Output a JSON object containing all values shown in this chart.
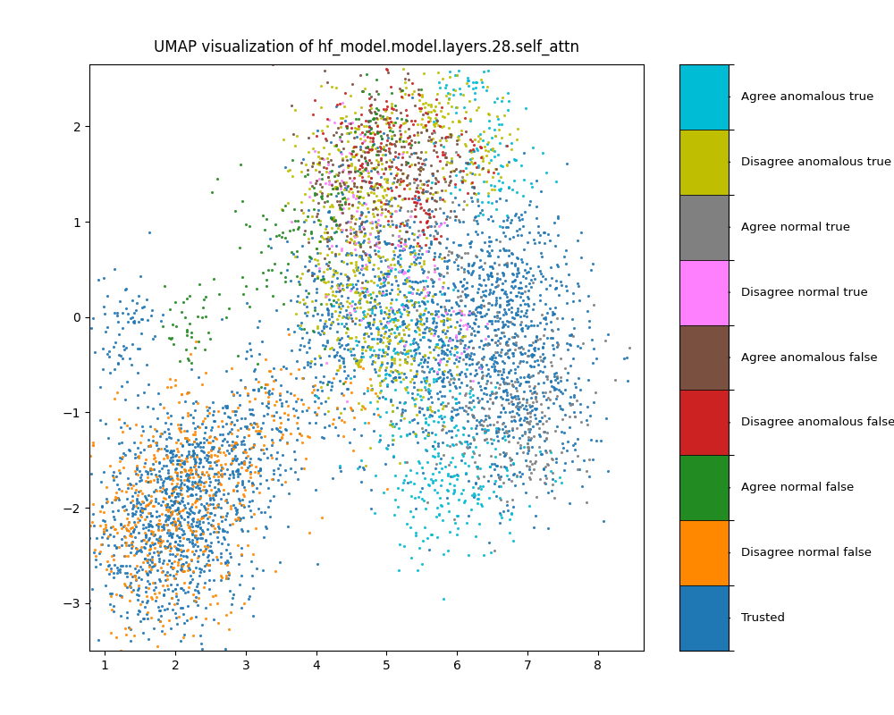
{
  "title": "UMAP visualization of hf_model.model.layers.28.self_attn",
  "xlim": [
    0.78,
    8.65
  ],
  "ylim": [
    -3.5,
    2.65
  ],
  "xticks": [
    1,
    2,
    3,
    4,
    5,
    6,
    7,
    8
  ],
  "yticks": [
    -3,
    -2,
    -1,
    0,
    1,
    2
  ],
  "categories": [
    "Agree anomalous true",
    "Disagree anomalous true",
    "Agree normal true",
    "Disagree normal true",
    "Agree anomalous false",
    "Disagree anomalous false",
    "Agree normal false",
    "Disagree normal false",
    "Trusted"
  ],
  "colors": [
    "#00bcd4",
    "#bfbe00",
    "#808080",
    "#ff80ff",
    "#7a5040",
    "#cc2222",
    "#228b22",
    "#ff8800",
    "#1f77b4"
  ],
  "point_size": 5,
  "alpha": 0.9,
  "seed": 42,
  "background_color": "#ffffff",
  "figsize": [
    10,
    8
  ],
  "dpi": 100
}
